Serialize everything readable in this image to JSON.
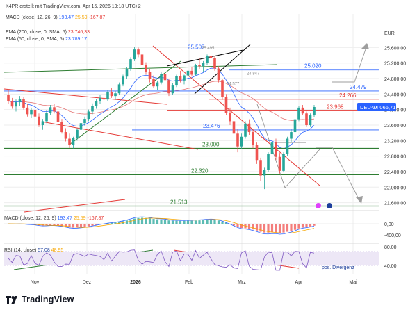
{
  "header": {
    "created": "K4PR erstellt mit TradingView.com, Apr 15, 2026 19:18 UTC+2",
    "macd_top": {
      "label": "MACD (close, 12, 26, 9)",
      "v1": "193,47",
      "v2": "25,59",
      "v3": "-167,87"
    },
    "ema200": {
      "label": "EMA (200, close, 0, SMA, 5)",
      "value": "23.746,33"
    },
    "ema50": {
      "label": "EMA (50, close, 0, SMA, 5)",
      "value": "23.789,17"
    }
  },
  "colors": {
    "up": "#26a69a",
    "down": "#ef5350",
    "ema50": "#2962ff",
    "ema200": "#e57373",
    "green_line": "#2e7d32",
    "red_line": "#e53935",
    "grid": "#eeeeee",
    "ticker_badge": "#2962ff",
    "macd_line": "#2962ff",
    "signal_line": "#f7a600",
    "rsi_line": "#7e57c2"
  },
  "price_axis": {
    "currency": "EUR",
    "ticks": [
      "25.600,00",
      "25.200,00",
      "24.800,00",
      "24.400,00",
      "24.000,00",
      "23.600,00",
      "23.200,00",
      "22.800,00",
      "22.400,00",
      "22.000,00",
      "21.600,00"
    ]
  },
  "ticker": {
    "symbol": "DEU40",
    "price": "24.066,71"
  },
  "levels": [
    {
      "label": "25.507",
      "value": 25507,
      "color": "#2962ff"
    },
    {
      "label": "25.495",
      "value": 25495,
      "color": "#888888"
    },
    {
      "label": "25.020",
      "value": 25020,
      "color": "#2962ff"
    },
    {
      "label": "24.847",
      "value": 24847,
      "color": "#888888"
    },
    {
      "label": "24.577",
      "value": 24577,
      "color": "#888888"
    },
    {
      "label": "24.479",
      "value": 24479,
      "color": "#2962ff"
    },
    {
      "label": "24.266",
      "value": 24266,
      "color": "#e53935"
    },
    {
      "label": "23.968",
      "value": 23968,
      "color": "#e53935"
    },
    {
      "label": "23.476",
      "value": 23476,
      "color": "#2962ff"
    },
    {
      "label": "23.000",
      "value": 23000,
      "color": "#2e7d32"
    },
    {
      "label": "22.320",
      "value": 22320,
      "color": "#2e7d32"
    },
    {
      "label": "21.513",
      "value": 21513,
      "color": "#2e7d32"
    }
  ],
  "time_axis": [
    "Nov",
    "Dez",
    "2026",
    "Feb",
    "Mrz",
    "Apr",
    "Mai"
  ],
  "macd_panel": {
    "label": "MACD (close, 12, 26, 9)",
    "v1": "193,47",
    "v2": "25,59",
    "v3": "-167,87",
    "ticks": [
      "0,00",
      "-400,00"
    ]
  },
  "rsi_panel": {
    "label": "RSI (14, close)",
    "v1": "57,08",
    "v2": "48,95",
    "ticks": [
      "80,00",
      "40,00"
    ],
    "annotation": "pos. Divergenz"
  },
  "brand": "TradingView",
  "chart_data": {
    "type": "candlestick",
    "series": [
      {
        "name": "EMA (200, close, 0, SMA, 5)",
        "last": 23746.33
      },
      {
        "name": "EMA (50, close, 0, SMA, 5)",
        "last": 23789.17
      }
    ],
    "last_price": 24066.71,
    "ylim": [
      21450,
      25750
    ],
    "x_labels": [
      "Nov",
      "Dez",
      "2026",
      "Feb",
      "Mrz",
      "Apr",
      "Mai"
    ],
    "candles": [
      [
        24380,
        24520,
        24150,
        24220
      ],
      [
        24220,
        24300,
        24020,
        24080
      ],
      [
        24080,
        24260,
        23950,
        24190
      ],
      [
        24190,
        24350,
        24100,
        24280
      ],
      [
        24280,
        24320,
        24000,
        24050
      ],
      [
        24050,
        24150,
        23820,
        23880
      ],
      [
        23880,
        24050,
        23780,
        23990
      ],
      [
        23990,
        24100,
        23760,
        23820
      ],
      [
        23820,
        23900,
        23550,
        23600
      ],
      [
        23600,
        23760,
        23480,
        23700
      ],
      [
        23700,
        23980,
        23650,
        23920
      ],
      [
        23920,
        24120,
        23860,
        24060
      ],
      [
        24060,
        24150,
        23900,
        23950
      ],
      [
        23950,
        24020,
        23640,
        23680
      ],
      [
        23680,
        23760,
        23380,
        23420
      ],
      [
        23420,
        23520,
        23180,
        23250
      ],
      [
        23250,
        23380,
        23010,
        23080
      ],
      [
        23080,
        23300,
        23000,
        23260
      ],
      [
        23260,
        23520,
        23200,
        23480
      ],
      [
        23480,
        23700,
        23420,
        23650
      ],
      [
        23650,
        23820,
        23580,
        23760
      ],
      [
        23760,
        24000,
        23700,
        23950
      ],
      [
        23950,
        24160,
        23880,
        24100
      ],
      [
        24100,
        24280,
        24020,
        24220
      ],
      [
        24220,
        24380,
        24150,
        24300
      ],
      [
        24300,
        24420,
        24200,
        24260
      ],
      [
        24260,
        24500,
        24220,
        24450
      ],
      [
        24450,
        24560,
        24300,
        24350
      ],
      [
        24350,
        24480,
        24250,
        24420
      ],
      [
        24420,
        24700,
        24380,
        24650
      ],
      [
        24650,
        24900,
        24600,
        24850
      ],
      [
        24850,
        25100,
        24800,
        25050
      ],
      [
        25050,
        25350,
        25000,
        25300
      ],
      [
        25300,
        25620,
        25250,
        25550
      ],
      [
        25550,
        25600,
        25350,
        25420
      ],
      [
        25420,
        25480,
        25100,
        25150
      ],
      [
        25150,
        25220,
        24900,
        24980
      ],
      [
        24980,
        25050,
        24700,
        24800
      ],
      [
        24800,
        24880,
        24550,
        24600
      ],
      [
        24600,
        24750,
        24500,
        24700
      ],
      [
        24700,
        24960,
        24650,
        24920
      ],
      [
        24920,
        25050,
        24700,
        24760
      ],
      [
        24760,
        24800,
        24350,
        24420
      ],
      [
        24420,
        24680,
        24380,
        24620
      ],
      [
        24620,
        24900,
        24580,
        24860
      ],
      [
        24860,
        25000,
        24700,
        24750
      ],
      [
        24750,
        24900,
        24650,
        24880
      ],
      [
        24880,
        25050,
        24800,
        25000
      ],
      [
        25000,
        25100,
        24850,
        24900
      ],
      [
        24900,
        25180,
        24880,
        25150
      ],
      [
        25150,
        25320,
        25050,
        25120
      ],
      [
        25120,
        25250,
        24980,
        25200
      ],
      [
        25200,
        25420,
        25150,
        25380
      ],
      [
        25380,
        25500,
        25280,
        25320
      ],
      [
        25320,
        25380,
        25000,
        25060
      ],
      [
        25060,
        25120,
        24700,
        24760
      ],
      [
        24760,
        24800,
        24250,
        24320
      ],
      [
        24320,
        24400,
        23850,
        23920
      ],
      [
        23920,
        24050,
        23600,
        23700
      ],
      [
        23700,
        23800,
        23300,
        23380
      ],
      [
        23380,
        23500,
        22900,
        23050
      ],
      [
        23050,
        23380,
        22980,
        23300
      ],
      [
        23300,
        23700,
        23250,
        23640
      ],
      [
        23640,
        23750,
        23350,
        23420
      ],
      [
        23420,
        23480,
        23000,
        23080
      ],
      [
        23080,
        23150,
        22600,
        22700
      ],
      [
        22700,
        22760,
        22150,
        22300
      ],
      [
        22300,
        22500,
        21950,
        22450
      ],
      [
        22450,
        22900,
        22400,
        22850
      ],
      [
        22850,
        23200,
        22800,
        23150
      ],
      [
        23150,
        23250,
        22700,
        22780
      ],
      [
        22780,
        22880,
        22350,
        22420
      ],
      [
        22420,
        22900,
        22380,
        22850
      ],
      [
        22850,
        23300,
        22800,
        23250
      ],
      [
        23250,
        23500,
        23150,
        23420
      ],
      [
        23420,
        23800,
        23380,
        23750
      ],
      [
        23750,
        24100,
        23700,
        24050
      ],
      [
        24050,
        24120,
        23850,
        23900
      ],
      [
        23900,
        23950,
        23550,
        23600
      ],
      [
        23600,
        23900,
        23550,
        23850
      ],
      [
        23850,
        24120,
        23800,
        24066
      ]
    ]
  }
}
